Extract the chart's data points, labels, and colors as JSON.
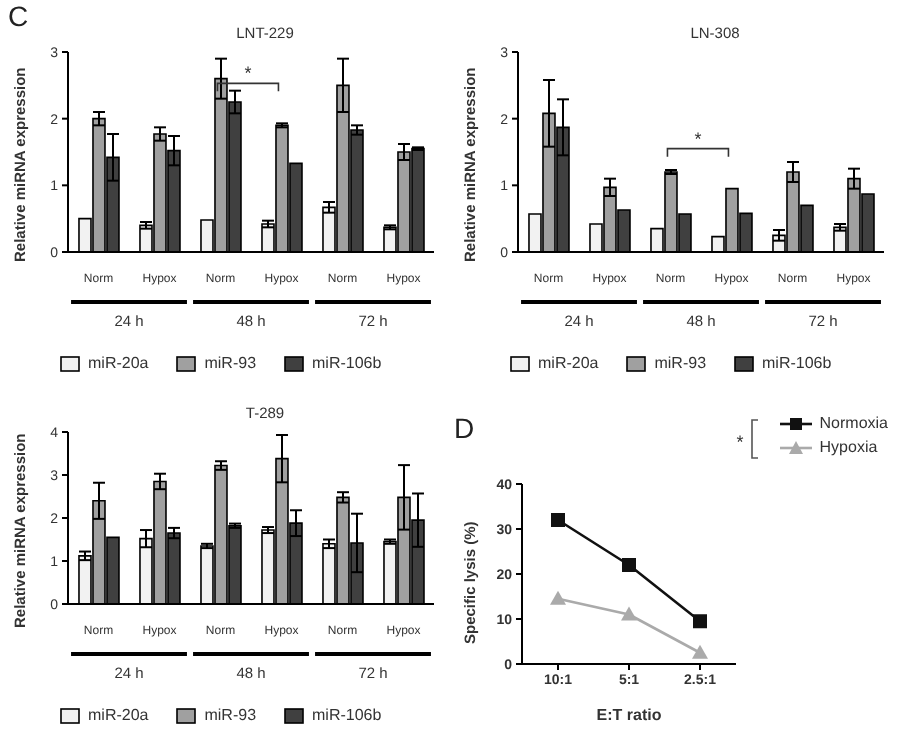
{
  "chart_data": [
    {
      "type": "bar",
      "title": "LNT-229",
      "ylabel": "Relative miRNA expression",
      "categories": [
        "Norm",
        "Hypox",
        "Norm",
        "Hypox",
        "Norm",
        "Hypox"
      ],
      "series": [
        {
          "name": "miR-20a",
          "color": "#f2f2f2",
          "values": [
            0.5,
            0.4,
            0.48,
            0.42,
            0.67,
            0.37
          ],
          "errors": [
            null,
            0.05,
            null,
            0.05,
            0.08,
            0.03
          ]
        },
        {
          "name": "miR-93",
          "color": "#a0a0a0",
          "values": [
            2.0,
            1.77,
            2.6,
            1.9,
            2.5,
            1.5
          ],
          "errors": [
            0.1,
            0.1,
            0.3,
            0.03,
            0.4,
            0.12
          ]
        },
        {
          "name": "miR-106b",
          "color": "#404040",
          "values": [
            1.42,
            1.52,
            2.25,
            1.33,
            1.83,
            1.55
          ],
          "errors": [
            0.35,
            0.22,
            0.17,
            null,
            0.07,
            0.02
          ]
        }
      ],
      "ylim": [
        0,
        3
      ],
      "yticks": [
        0,
        1,
        2,
        3
      ],
      "legend": "bottom",
      "annotations": [
        "C",
        "*",
        "24 h",
        "48 h",
        "72 h"
      ]
    },
    {
      "type": "bar",
      "title": "LN-308",
      "ylabel": "Relative miRNA expression",
      "categories": [
        "Norm",
        "Hypox",
        "Norm",
        "Hypox",
        "Norm",
        "Hypox"
      ],
      "series": [
        {
          "name": "miR-20a",
          "color": "#f2f2f2",
          "values": [
            0.57,
            0.42,
            0.35,
            0.23,
            0.25,
            0.37
          ],
          "errors": [
            null,
            null,
            null,
            null,
            0.08,
            0.05
          ]
        },
        {
          "name": "miR-93",
          "color": "#a0a0a0",
          "values": [
            2.08,
            0.97,
            1.2,
            0.95,
            1.2,
            1.1
          ],
          "errors": [
            0.5,
            0.13,
            0.03,
            null,
            0.15,
            0.15
          ]
        },
        {
          "name": "miR-106b",
          "color": "#404040",
          "values": [
            1.87,
            0.63,
            0.57,
            0.58,
            0.7,
            0.87
          ],
          "errors": [
            0.42,
            null,
            null,
            null,
            null,
            null
          ]
        }
      ],
      "ylim": [
        0,
        3
      ],
      "yticks": [
        0,
        1,
        2,
        3
      ],
      "legend": "bottom",
      "annotations": [
        "*",
        "24 h",
        "48 h",
        "72 h"
      ]
    },
    {
      "type": "bar",
      "title": "T-289",
      "ylabel": "Relative miRNA expression",
      "categories": [
        "Norm",
        "Hypox",
        "Norm",
        "Hypox",
        "Norm",
        "Hypox"
      ],
      "series": [
        {
          "name": "miR-20a",
          "color": "#f2f2f2",
          "values": [
            1.12,
            1.52,
            1.35,
            1.72,
            1.4,
            1.45
          ],
          "errors": [
            0.1,
            0.2,
            0.05,
            0.07,
            0.1,
            0.05
          ]
        },
        {
          "name": "miR-93",
          "color": "#a0a0a0",
          "values": [
            2.4,
            2.85,
            3.22,
            3.38,
            2.48,
            2.48
          ],
          "errors": [
            0.42,
            0.18,
            0.1,
            0.55,
            0.12,
            0.75
          ]
        },
        {
          "name": "miR-106b",
          "color": "#404040",
          "values": [
            1.55,
            1.65,
            1.82,
            1.88,
            1.42,
            1.95
          ],
          "errors": [
            null,
            0.12,
            0.05,
            0.3,
            0.68,
            0.62
          ]
        }
      ],
      "ylim": [
        0,
        4
      ],
      "yticks": [
        0,
        1,
        2,
        3,
        4
      ],
      "legend": "bottom",
      "annotations": [
        "24 h",
        "48 h",
        "72 h"
      ]
    },
    {
      "type": "line",
      "xlabel": "E:T ratio",
      "ylabel": "Specific lysis (%)",
      "categories": [
        "10:1",
        "5:1",
        "2.5:1"
      ],
      "series": [
        {
          "name": "Normoxia",
          "color": "#111111",
          "marker": "square",
          "values": [
            32,
            22,
            9.5
          ]
        },
        {
          "name": "Hypoxia",
          "color": "#aaaaaa",
          "marker": "triangle",
          "values": [
            14.5,
            11,
            2.5
          ]
        }
      ],
      "ylim": [
        0,
        40
      ],
      "yticks": [
        0,
        10,
        20,
        30,
        40
      ],
      "legend": "right",
      "annotations": [
        "D",
        "*"
      ]
    }
  ]
}
